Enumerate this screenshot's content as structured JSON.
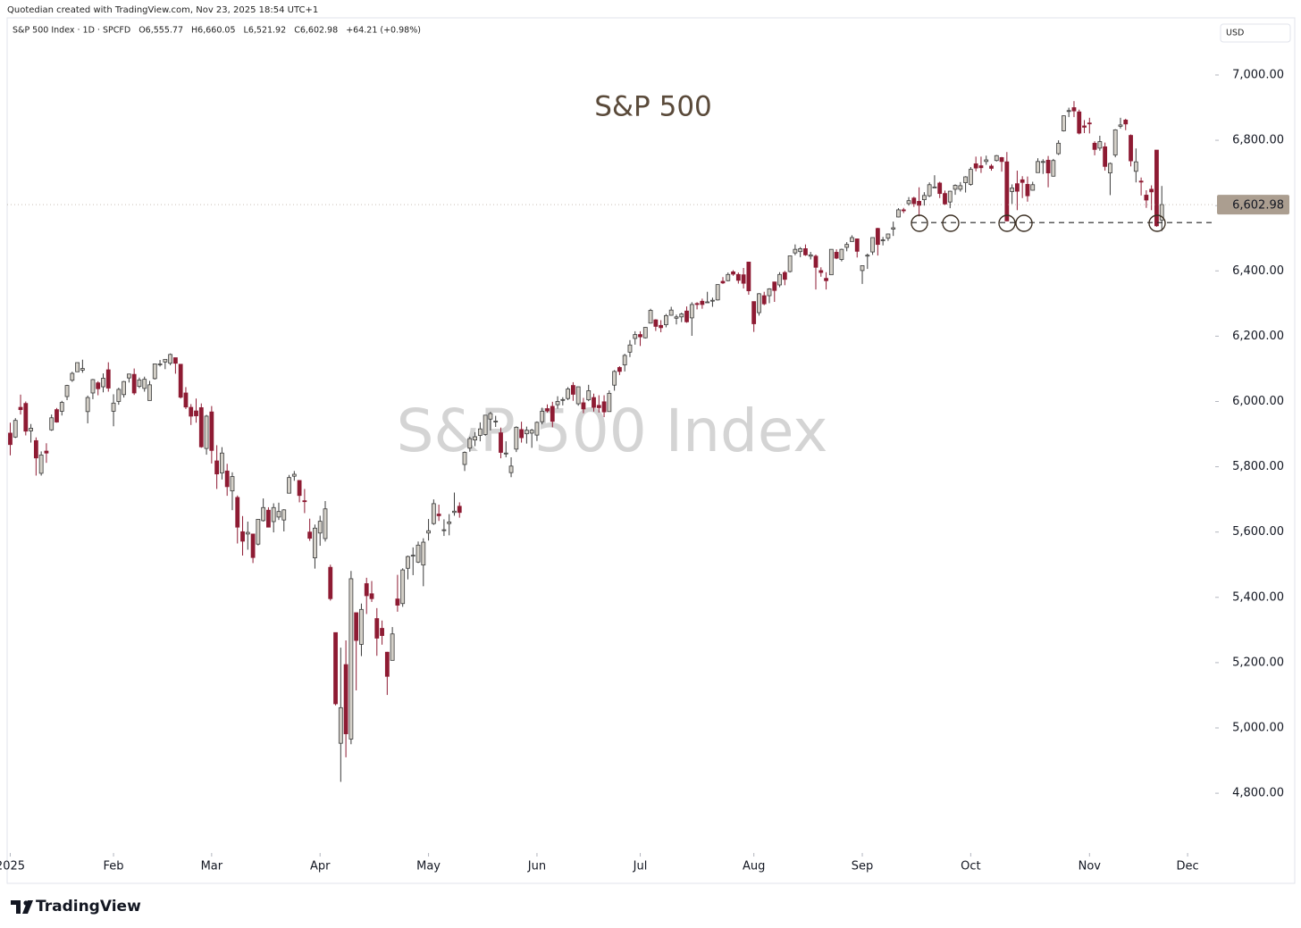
{
  "chart_data": {
    "type": "candlestick",
    "created": "Quotedian created with TradingView.com, Nov 23, 2025 18:54 UTC+1",
    "header": "S&P 500 Index · 1D · SPCFD   O6,555.77   H6,660.05   L6,521.92   C6,602.98   +64.21 (+0.98%)",
    "currency": "USD",
    "title": "S&P 500",
    "watermark": "S&P 500 Index",
    "brand": "TradingView",
    "up_color": "#d4d0c8",
    "down_color": "#8e1b33",
    "outline_color": "#3a3a3a",
    "xlim": [
      -0.6,
      233
    ],
    "ylim": [
      4617,
      7175
    ],
    "yticks": [
      {
        "value": 4800,
        "label": "4,800.00"
      },
      {
        "value": 5000,
        "label": "5,000.00"
      },
      {
        "value": 5200,
        "label": "5,200.00"
      },
      {
        "value": 5400,
        "label": "5,400.00"
      },
      {
        "value": 5600,
        "label": "5,600.00"
      },
      {
        "value": 5800,
        "label": "5,800.00"
      },
      {
        "value": 6000,
        "label": "6,000.00"
      },
      {
        "value": 6200,
        "label": "6,200.00"
      },
      {
        "value": 6400,
        "label": "6,400.00"
      },
      {
        "value": 6600,
        "label": "6,600.00"
      },
      {
        "value": 6800,
        "label": "6,800.00"
      },
      {
        "value": 7000,
        "label": "7,000.00"
      }
    ],
    "xticks": [
      {
        "value": 0,
        "label": "2025"
      },
      {
        "value": 20,
        "label": "Feb"
      },
      {
        "value": 39,
        "label": "Mar"
      },
      {
        "value": 60,
        "label": "Apr"
      },
      {
        "value": 81,
        "label": "May"
      },
      {
        "value": 102,
        "label": "Jun"
      },
      {
        "value": 122,
        "label": "Jul"
      },
      {
        "value": 144,
        "label": "Aug"
      },
      {
        "value": 165,
        "label": "Sep"
      },
      {
        "value": 186,
        "label": "Oct"
      },
      {
        "value": 209,
        "label": "Nov"
      },
      {
        "value": 228,
        "label": "Dec"
      }
    ],
    "last_price": {
      "value": 6602.98,
      "label": "6,602.98"
    },
    "support_level": 6548,
    "ohlc": [
      [
        5903,
        5935,
        5835,
        5868
      ],
      [
        5891,
        5949,
        5888,
        5942
      ],
      [
        5982,
        6021,
        5960,
        5975
      ],
      [
        5994,
        6000,
        5896,
        5909
      ],
      [
        5910,
        5931,
        5874,
        5918
      ],
      [
        5880,
        5890,
        5773,
        5827
      ],
      [
        5780,
        5847,
        5773,
        5836
      ],
      [
        5848,
        5872,
        5812,
        5842
      ],
      [
        5913,
        5960,
        5910,
        5950
      ],
      [
        5975,
        5980,
        5935,
        5937
      ],
      [
        5970,
        6002,
        5957,
        5997
      ],
      [
        6015,
        6051,
        6004,
        6049
      ],
      [
        6065,
        6091,
        6060,
        6086
      ],
      [
        6091,
        6119,
        6091,
        6119
      ],
      [
        6096,
        6128,
        6088,
        6101
      ],
      [
        5969,
        6018,
        5933,
        6012
      ],
      [
        6026,
        6069,
        6007,
        6067
      ],
      [
        6057,
        6062,
        6019,
        6039
      ],
      [
        6045,
        6086,
        6028,
        6071
      ],
      [
        6097,
        6120,
        6030,
        6041
      ],
      [
        5970,
        6022,
        5924,
        5995
      ],
      [
        6000,
        6042,
        5990,
        6037
      ],
      [
        6021,
        6063,
        6012,
        6061
      ],
      [
        6072,
        6085,
        6058,
        6084
      ],
      [
        6083,
        6101,
        6020,
        6026
      ],
      [
        6046,
        6073,
        6041,
        6066
      ],
      [
        6040,
        6076,
        6030,
        6068
      ],
      [
        6003,
        6063,
        6003,
        6051
      ],
      [
        6070,
        6116,
        6067,
        6115
      ],
      [
        6115,
        6127,
        6107,
        6115
      ],
      [
        6121,
        6129,
        6099,
        6129
      ],
      [
        6117,
        6147,
        6111,
        6144
      ],
      [
        6134,
        6134,
        6085,
        6117
      ],
      [
        6114,
        6114,
        6009,
        6013
      ],
      [
        6026,
        6044,
        5977,
        5983
      ],
      [
        5982,
        5992,
        5928,
        5955
      ],
      [
        5971,
        6009,
        5935,
        5956
      ],
      [
        5981,
        5994,
        5858,
        5861
      ],
      [
        5856,
        5959,
        5837,
        5955
      ],
      [
        5968,
        5986,
        5810,
        5850
      ],
      [
        5818,
        5866,
        5732,
        5778
      ],
      [
        5781,
        5860,
        5761,
        5842
      ],
      [
        5787,
        5809,
        5711,
        5739
      ],
      [
        5726,
        5783,
        5667,
        5770
      ],
      [
        5706,
        5712,
        5565,
        5615
      ],
      [
        5601,
        5649,
        5528,
        5572
      ],
      [
        5594,
        5632,
        5546,
        5599
      ],
      [
        5594,
        5595,
        5505,
        5522
      ],
      [
        5563,
        5639,
        5559,
        5639
      ],
      [
        5635,
        5703,
        5632,
        5675
      ],
      [
        5667,
        5676,
        5615,
        5615
      ],
      [
        5632,
        5688,
        5599,
        5675
      ],
      [
        5646,
        5690,
        5637,
        5663
      ],
      [
        5637,
        5670,
        5602,
        5668
      ],
      [
        5719,
        5775,
        5719,
        5767
      ],
      [
        5771,
        5787,
        5757,
        5777
      ],
      [
        5758,
        5759,
        5691,
        5712
      ],
      [
        5696,
        5732,
        5658,
        5693
      ],
      [
        5600,
        5641,
        5573,
        5581
      ],
      [
        5521,
        5623,
        5488,
        5612
      ],
      [
        5597,
        5650,
        5558,
        5633
      ],
      [
        5580,
        5695,
        5571,
        5671
      ],
      [
        5492,
        5500,
        5390,
        5396
      ],
      [
        5292,
        5292,
        5069,
        5074
      ],
      [
        4953,
        5246,
        4835,
        5062
      ],
      [
        5194,
        5268,
        4910,
        4982
      ],
      [
        4966,
        5481,
        4950,
        5457
      ],
      [
        5353,
        5353,
        5115,
        5268
      ],
      [
        5256,
        5381,
        5220,
        5363
      ],
      [
        5442,
        5460,
        5349,
        5405
      ],
      [
        5411,
        5450,
        5386,
        5396
      ],
      [
        5335,
        5367,
        5221,
        5275
      ],
      [
        5305,
        5329,
        5255,
        5283
      ],
      [
        5232,
        5233,
        5101,
        5158
      ],
      [
        5207,
        5309,
        5207,
        5288
      ],
      [
        5395,
        5469,
        5356,
        5376
      ],
      [
        5381,
        5489,
        5371,
        5484
      ],
      [
        5489,
        5528,
        5455,
        5525
      ],
      [
        5529,
        5553,
        5468,
        5529
      ],
      [
        5508,
        5571,
        5505,
        5560
      ],
      [
        5499,
        5581,
        5434,
        5569
      ],
      [
        5597,
        5640,
        5574,
        5604
      ],
      [
        5626,
        5700,
        5622,
        5687
      ],
      [
        5655,
        5684,
        5634,
        5650
      ],
      [
        5605,
        5639,
        5588,
        5607
      ],
      [
        5626,
        5655,
        5590,
        5631
      ],
      [
        5660,
        5721,
        5650,
        5664
      ],
      [
        5679,
        5691,
        5644,
        5660
      ],
      [
        5807,
        5847,
        5787,
        5844
      ],
      [
        5857,
        5892,
        5846,
        5886
      ],
      [
        5882,
        5906,
        5863,
        5892
      ],
      [
        5896,
        5936,
        5878,
        5916
      ],
      [
        5899,
        5959,
        5895,
        5958
      ],
      [
        5946,
        5968,
        5911,
        5963
      ],
      [
        5940,
        5956,
        5922,
        5940
      ],
      [
        5904,
        5920,
        5826,
        5844
      ],
      [
        5842,
        5878,
        5829,
        5842
      ],
      [
        5782,
        5829,
        5768,
        5802
      ],
      [
        5854,
        5924,
        5845,
        5921
      ],
      [
        5914,
        5938,
        5874,
        5889
      ],
      [
        5901,
        5923,
        5871,
        5912
      ],
      [
        5903,
        5916,
        5858,
        5912
      ],
      [
        5897,
        5939,
        5879,
        5936
      ],
      [
        5938,
        5981,
        5930,
        5970
      ],
      [
        5978,
        5991,
        5966,
        5971
      ],
      [
        5985,
        5999,
        5921,
        5939
      ],
      [
        5990,
        6016,
        5978,
        6000
      ],
      [
        6005,
        6013,
        5988,
        6006
      ],
      [
        6009,
        6044,
        6004,
        6038
      ],
      [
        6049,
        6059,
        6002,
        6022
      ],
      [
        5993,
        6045,
        5987,
        6045
      ],
      [
        5996,
        6011,
        5964,
        5977
      ],
      [
        6005,
        6051,
        6001,
        6033
      ],
      [
        6012,
        6024,
        5969,
        5982
      ],
      [
        5988,
        6019,
        5966,
        5981
      ],
      [
        5999,
        6019,
        5952,
        5968
      ],
      [
        5969,
        6034,
        5969,
        6025
      ],
      [
        6050,
        6096,
        6033,
        6092
      ],
      [
        6104,
        6108,
        6081,
        6092
      ],
      [
        6112,
        6146,
        6092,
        6141
      ],
      [
        6151,
        6188,
        6136,
        6173
      ],
      [
        6193,
        6215,
        6174,
        6205
      ],
      [
        6205,
        6215,
        6170,
        6198
      ],
      [
        6195,
        6228,
        6193,
        6227
      ],
      [
        6240,
        6284,
        6239,
        6279
      ],
      [
        6250,
        6252,
        6216,
        6230
      ],
      [
        6233,
        6249,
        6212,
        6226
      ],
      [
        6235,
        6268,
        6227,
        6263
      ],
      [
        6264,
        6290,
        6263,
        6280
      ],
      [
        6255,
        6266,
        6236,
        6259
      ],
      [
        6259,
        6272,
        6243,
        6268
      ],
      [
        6277,
        6291,
        6241,
        6244
      ],
      [
        6256,
        6304,
        6201,
        6297
      ],
      [
        6300,
        6304,
        6282,
        6297
      ],
      [
        6307,
        6315,
        6284,
        6297
      ],
      [
        6305,
        6336,
        6303,
        6305
      ],
      [
        6309,
        6318,
        6290,
        6310
      ],
      [
        6311,
        6359,
        6309,
        6358
      ],
      [
        6368,
        6381,
        6360,
        6363
      ],
      [
        6370,
        6395,
        6368,
        6389
      ],
      [
        6397,
        6402,
        6385,
        6390
      ],
      [
        6389,
        6395,
        6361,
        6371
      ],
      [
        6388,
        6409,
        6346,
        6362
      ],
      [
        6427,
        6428,
        6327,
        6339
      ],
      [
        6306,
        6306,
        6213,
        6238
      ],
      [
        6272,
        6332,
        6263,
        6330
      ],
      [
        6324,
        6336,
        6295,
        6299
      ],
      [
        6324,
        6347,
        6301,
        6345
      ],
      [
        6366,
        6367,
        6305,
        6340
      ],
      [
        6357,
        6396,
        6350,
        6389
      ],
      [
        6395,
        6400,
        6356,
        6374
      ],
      [
        6398,
        6446,
        6395,
        6446
      ],
      [
        6455,
        6481,
        6448,
        6466
      ],
      [
        6459,
        6473,
        6442,
        6468
      ],
      [
        6468,
        6481,
        6446,
        6449
      ],
      [
        6445,
        6458,
        6435,
        6449
      ],
      [
        6445,
        6450,
        6343,
        6411
      ],
      [
        6401,
        6411,
        6382,
        6395
      ],
      [
        6377,
        6396,
        6343,
        6370
      ],
      [
        6388,
        6466,
        6388,
        6466
      ],
      [
        6457,
        6466,
        6436,
        6439
      ],
      [
        6435,
        6468,
        6429,
        6466
      ],
      [
        6472,
        6488,
        6460,
        6481
      ],
      [
        6490,
        6509,
        6490,
        6502
      ],
      [
        6498,
        6499,
        6441,
        6460
      ],
      [
        6401,
        6416,
        6360,
        6416
      ],
      [
        6448,
        6453,
        6406,
        6448
      ],
      [
        6458,
        6502,
        6449,
        6502
      ],
      [
        6530,
        6532,
        6447,
        6481
      ],
      [
        6494,
        6504,
        6478,
        6495
      ],
      [
        6500,
        6514,
        6492,
        6513
      ],
      [
        6528,
        6551,
        6507,
        6532
      ],
      [
        6565,
        6592,
        6564,
        6587
      ],
      [
        6587,
        6593,
        6577,
        6584
      ],
      [
        6606,
        6626,
        6600,
        6615
      ],
      [
        6623,
        6627,
        6596,
        6606
      ],
      [
        6613,
        6656,
        6567,
        6601
      ],
      [
        6618,
        6641,
        6600,
        6631
      ],
      [
        6630,
        6671,
        6626,
        6664
      ],
      [
        6657,
        6693,
        6655,
        6657
      ],
      [
        6669,
        6673,
        6623,
        6637
      ],
      [
        6637,
        6646,
        6602,
        6605
      ],
      [
        6611,
        6645,
        6592,
        6644
      ],
      [
        6650,
        6665,
        6633,
        6662
      ],
      [
        6650,
        6672,
        6643,
        6661
      ],
      [
        6670,
        6690,
        6640,
        6688
      ],
      [
        6665,
        6718,
        6661,
        6711
      ],
      [
        6728,
        6750,
        6705,
        6715
      ],
      [
        6722,
        6750,
        6700,
        6716
      ],
      [
        6735,
        6753,
        6725,
        6740
      ],
      [
        6721,
        6727,
        6707,
        6714
      ],
      [
        6738,
        6755,
        6735,
        6753
      ],
      [
        6747,
        6749,
        6704,
        6735
      ],
      [
        6734,
        6764,
        6552,
        6553
      ],
      [
        6643,
        6665,
        6605,
        6654
      ],
      [
        6667,
        6707,
        6586,
        6644
      ],
      [
        6679,
        6690,
        6623,
        6671
      ],
      [
        6665,
        6689,
        6612,
        6630
      ],
      [
        6647,
        6673,
        6646,
        6664
      ],
      [
        6701,
        6745,
        6701,
        6735
      ],
      [
        6735,
        6742,
        6697,
        6735
      ],
      [
        6739,
        6752,
        6656,
        6700
      ],
      [
        6690,
        6743,
        6689,
        6738
      ],
      [
        6759,
        6800,
        6755,
        6791
      ],
      [
        6829,
        6876,
        6827,
        6875
      ],
      [
        6890,
        6900,
        6871,
        6891
      ],
      [
        6900,
        6920,
        6871,
        6890
      ],
      [
        6887,
        6894,
        6818,
        6822
      ],
      [
        6844,
        6862,
        6822,
        6840
      ],
      [
        6853,
        6869,
        6821,
        6851
      ],
      [
        6791,
        6797,
        6754,
        6772
      ],
      [
        6776,
        6814,
        6768,
        6796
      ],
      [
        6780,
        6793,
        6707,
        6720
      ],
      [
        6700,
        6732,
        6632,
        6729
      ],
      [
        6755,
        6834,
        6748,
        6832
      ],
      [
        6843,
        6869,
        6836,
        6847
      ],
      [
        6862,
        6866,
        6831,
        6850
      ],
      [
        6815,
        6818,
        6720,
        6737
      ],
      [
        6705,
        6775,
        6671,
        6734
      ],
      [
        6675,
        6686,
        6631,
        6672
      ],
      [
        6632,
        6647,
        6593,
        6617
      ],
      [
        6650,
        6662,
        6586,
        6642
      ],
      [
        6770,
        6770,
        6535,
        6538
      ],
      [
        6555.77,
        6660.05,
        6521.92,
        6602.98
      ]
    ]
  }
}
